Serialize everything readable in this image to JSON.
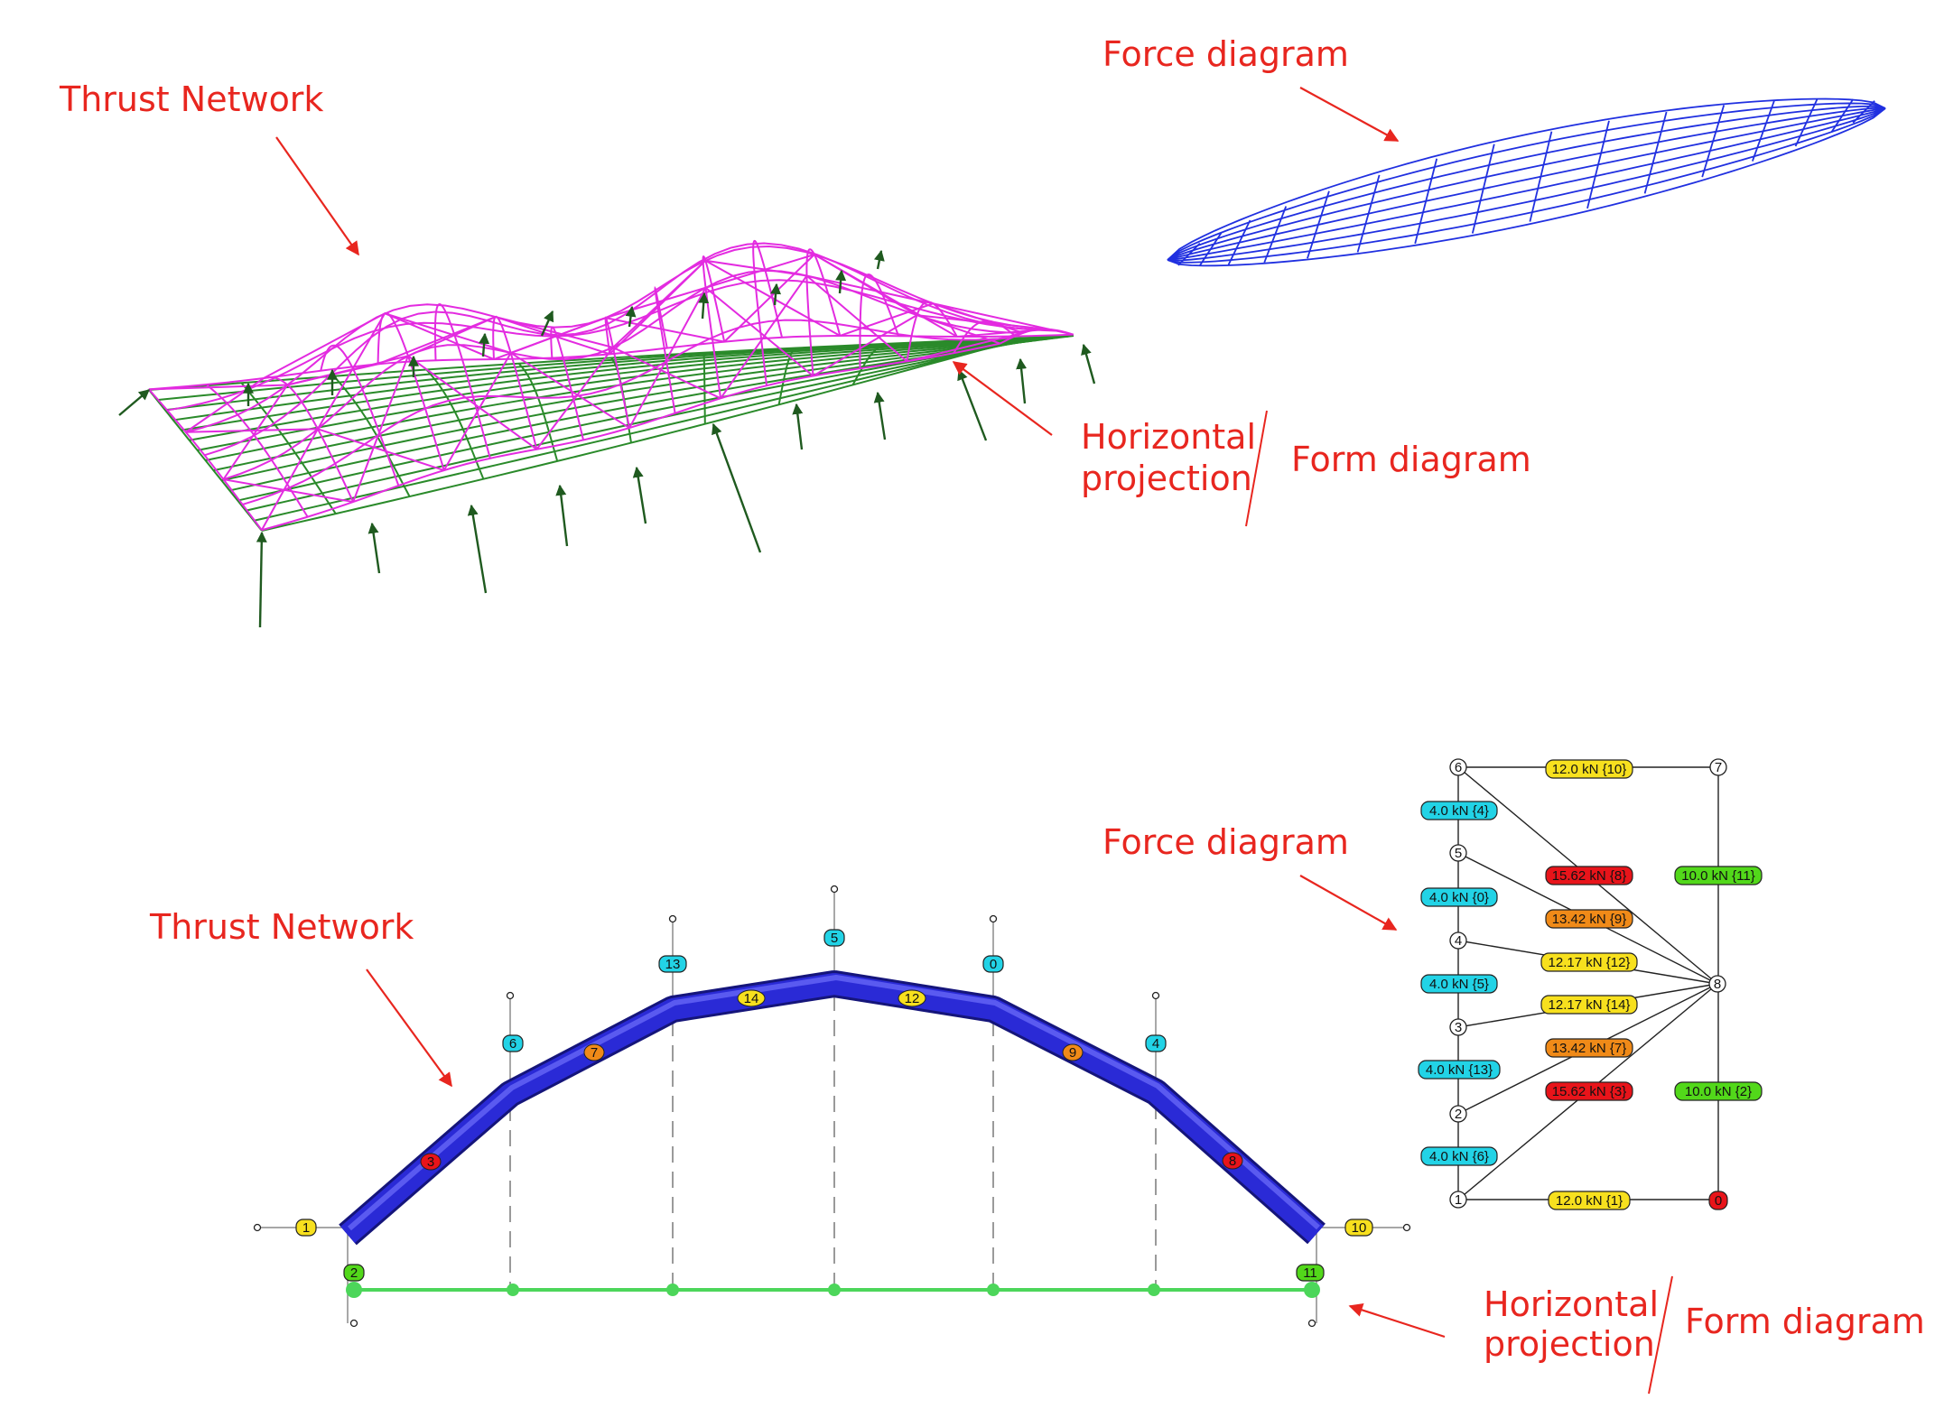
{
  "top": {
    "thrust_network_label": "Thrust Network",
    "force_diagram_label": "Force diagram",
    "horizontal_projection_label": [
      "Horizontal",
      "projection"
    ],
    "form_diagram_label": "Form diagram"
  },
  "bottom": {
    "thrust_network_label": "Thrust Network",
    "force_diagram_label": "Force diagram",
    "horizontal_projection_label": [
      "Horizontal",
      "projection"
    ],
    "form_diagram_label": "Form diagram",
    "colors": {
      "cyan": "#22d3e6",
      "yellow": "#f7e01e",
      "orange": "#f08a18",
      "red": "#e8141a",
      "green": "#52d81a",
      "arch": "#2a2ad6",
      "projection": "#4cd65a"
    },
    "arch_edge_labels": [
      {
        "text": "3",
        "color": "red"
      },
      {
        "text": "7",
        "color": "orange"
      },
      {
        "text": "14",
        "color": "yellow"
      },
      {
        "text": "12",
        "color": "yellow"
      },
      {
        "text": "9",
        "color": "orange"
      },
      {
        "text": "8",
        "color": "red"
      }
    ],
    "load_labels": [
      {
        "text": "6",
        "color": "cyan"
      },
      {
        "text": "13",
        "color": "cyan"
      },
      {
        "text": "5",
        "color": "cyan"
      },
      {
        "text": "0",
        "color": "cyan"
      },
      {
        "text": "4",
        "color": "cyan"
      }
    ],
    "support_labels": [
      {
        "text": "1",
        "color": "yellow"
      },
      {
        "text": "2",
        "color": "green"
      },
      {
        "text": "10",
        "color": "yellow"
      },
      {
        "text": "11",
        "color": "green"
      }
    ],
    "force_nodes": [
      "6",
      "7",
      "5",
      "4",
      "8",
      "3",
      "2",
      "1",
      "0"
    ],
    "force_labels": [
      {
        "text": "12.0 kN {10}",
        "color": "yellow"
      },
      {
        "text": "4.0 kN {4}",
        "color": "cyan"
      },
      {
        "text": "15.62 kN {8}",
        "color": "red"
      },
      {
        "text": "10.0 kN {11}",
        "color": "green"
      },
      {
        "text": "4.0 kN {0}",
        "color": "cyan"
      },
      {
        "text": "13.42 kN {9}",
        "color": "orange"
      },
      {
        "text": "12.17 kN {12}",
        "color": "yellow"
      },
      {
        "text": "4.0 kN {5}",
        "color": "cyan"
      },
      {
        "text": "12.17 kN {14}",
        "color": "yellow"
      },
      {
        "text": "13.42 kN {7}",
        "color": "orange"
      },
      {
        "text": "4.0 kN {13}",
        "color": "cyan"
      },
      {
        "text": "15.62 kN {3}",
        "color": "red"
      },
      {
        "text": "10.0 kN {2}",
        "color": "green"
      },
      {
        "text": "4.0 kN {6}",
        "color": "cyan"
      },
      {
        "text": "12.0 kN {1}",
        "color": "yellow"
      },
      {
        "text": "0",
        "color": "red"
      }
    ]
  }
}
